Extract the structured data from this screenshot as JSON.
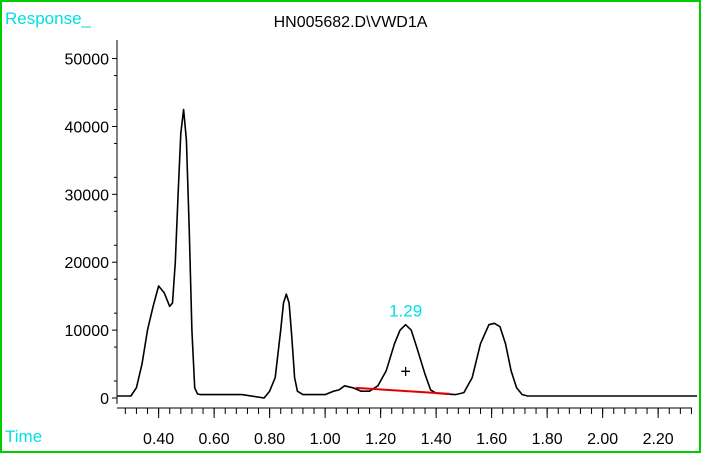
{
  "chart_data": {
    "type": "line",
    "title": "HN005682.D\\VWD1A",
    "ylabel": "Response_",
    "xlabel": "Time",
    "xlim": [
      0.25,
      2.34
    ],
    "ylim": [
      0,
      52000
    ],
    "x_ticks": [
      "0.40",
      "0.60",
      "0.80",
      "1.00",
      "1.20",
      "1.40",
      "1.60",
      "1.80",
      "2.00",
      "2.20"
    ],
    "y_ticks": [
      "0",
      "10000",
      "20000",
      "30000",
      "40000",
      "50000"
    ],
    "grid": false,
    "series": [
      {
        "color": "#000000",
        "x": [
          0.25,
          0.3,
          0.32,
          0.34,
          0.36,
          0.38,
          0.4,
          0.42,
          0.44,
          0.45,
          0.46,
          0.47,
          0.48,
          0.49,
          0.5,
          0.51,
          0.52,
          0.53,
          0.54,
          0.55,
          0.6,
          0.7,
          0.78,
          0.8,
          0.82,
          0.84,
          0.85,
          0.86,
          0.87,
          0.88,
          0.89,
          0.9,
          0.92,
          0.95,
          1.0,
          1.03,
          1.05,
          1.07,
          1.1,
          1.13,
          1.16,
          1.19,
          1.22,
          1.25,
          1.27,
          1.29,
          1.31,
          1.33,
          1.36,
          1.38,
          1.4,
          1.43,
          1.47,
          1.5,
          1.53,
          1.56,
          1.59,
          1.61,
          1.63,
          1.65,
          1.67,
          1.69,
          1.71,
          1.73,
          1.76,
          1.8,
          2.0,
          2.2,
          2.34
        ],
        "values": [
          300,
          300,
          1500,
          5000,
          10000,
          13500,
          16500,
          15500,
          13500,
          14000,
          20000,
          30000,
          39000,
          42500,
          38000,
          25000,
          10000,
          1500,
          600,
          500,
          500,
          500,
          0,
          1000,
          3000,
          10000,
          14000,
          15300,
          14000,
          9000,
          3000,
          1000,
          500,
          500,
          500,
          1000,
          1200,
          1800,
          1500,
          1000,
          1000,
          1800,
          4000,
          8000,
          10000,
          10800,
          10000,
          7500,
          3500,
          1200,
          700,
          600,
          500,
          800,
          3000,
          8000,
          10800,
          11000,
          10500,
          8000,
          4000,
          1500,
          500,
          300,
          300,
          300,
          300,
          300,
          300
        ]
      }
    ],
    "baseline": {
      "color": "#e00000",
      "x": [
        1.11,
        1.45
      ],
      "values": [
        1500,
        600
      ]
    },
    "annotations": [
      {
        "text": "1.29",
        "x": 1.29,
        "y": 12000,
        "color": "#00e0e0"
      },
      {
        "text": "+",
        "x": 1.29,
        "y": 3000,
        "color": "#000000"
      }
    ],
    "colors": {
      "frame": "#00cc00",
      "axis_labels": "#00e0e0",
      "trace": "#000000",
      "baseline": "#e00000"
    }
  }
}
